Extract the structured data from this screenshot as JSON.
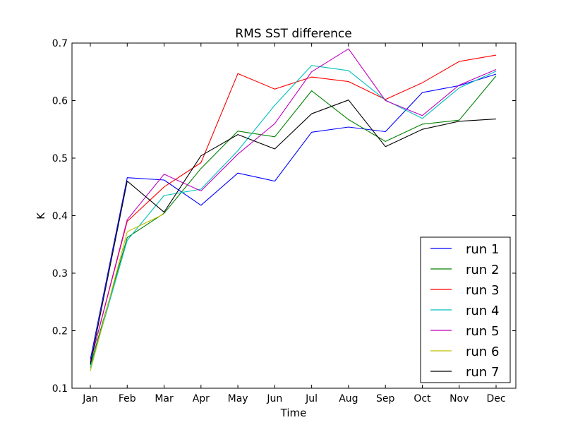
{
  "chart_data": {
    "type": "line",
    "title": "RMS SST difference",
    "xlabel": "Time",
    "ylabel": "K",
    "categories": [
      "Jan",
      "Feb",
      "Mar",
      "Apr",
      "May",
      "Jun",
      "Jul",
      "Aug",
      "Sep",
      "Oct",
      "Nov",
      "Dec"
    ],
    "ylim": [
      0.1,
      0.7
    ],
    "yticks": [
      "0.1",
      "0.2",
      "0.3",
      "0.4",
      "0.5",
      "0.6",
      "0.7"
    ],
    "grid": false,
    "legend_position": "lower-right",
    "series": [
      {
        "name": "run 1",
        "color": "#0000ff",
        "values": [
          0.15,
          0.466,
          0.462,
          0.418,
          0.474,
          0.46,
          0.545,
          0.554,
          0.546,
          0.614,
          0.626,
          0.646
        ]
      },
      {
        "name": "run 2",
        "color": "#008000",
        "values": [
          0.14,
          0.362,
          0.404,
          0.482,
          0.547,
          0.537,
          0.617,
          0.567,
          0.529,
          0.559,
          0.566,
          0.643
        ]
      },
      {
        "name": "run 3",
        "color": "#ff0000",
        "values": [
          0.145,
          0.39,
          0.45,
          0.492,
          0.647,
          0.62,
          0.641,
          0.633,
          0.602,
          0.631,
          0.668,
          0.679
        ]
      },
      {
        "name": "run 4",
        "color": "#00bfbf",
        "values": [
          0.135,
          0.357,
          0.435,
          0.446,
          0.513,
          0.592,
          0.661,
          0.652,
          0.601,
          0.569,
          0.622,
          0.651
        ]
      },
      {
        "name": "run 5",
        "color": "#bf00bf",
        "values": [
          0.145,
          0.393,
          0.472,
          0.443,
          0.507,
          0.56,
          0.65,
          0.69,
          0.6,
          0.574,
          0.627,
          0.654
        ]
      },
      {
        "name": "run 6",
        "color": "#bfbf00",
        "values": [
          0.13,
          0.372,
          0.403,
          null,
          null,
          null,
          null,
          null,
          null,
          null,
          null,
          null
        ]
      },
      {
        "name": "run 7",
        "color": "#000000",
        "values": [
          0.142,
          0.46,
          0.406,
          0.504,
          0.541,
          0.516,
          0.577,
          0.601,
          0.52,
          0.55,
          0.564,
          0.568
        ]
      }
    ]
  }
}
